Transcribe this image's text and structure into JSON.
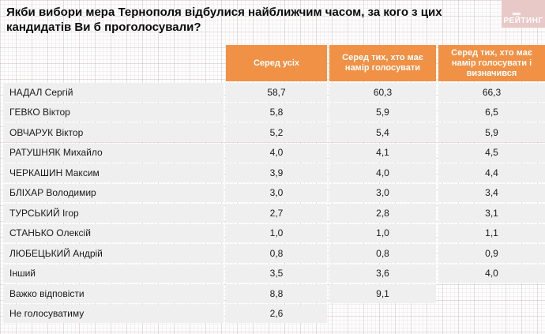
{
  "title": "Якби вибори мера Тернополя відбулися найближчим часом, за кого з цих кандидатів Ви б проголосували?",
  "logo": {
    "text": "РЕЙТИНГ"
  },
  "colors": {
    "header_orange": "#f09146",
    "cell_gray": "#efefef",
    "logo_pink": "#e9c9c7"
  },
  "table": {
    "columns": [
      "Серед усіх",
      "Серед тих, хто має намір голосувати",
      "Серед тих, хто має намір голосувати і визначився"
    ],
    "rows": [
      {
        "label": "НАДАЛ Сергій",
        "values": [
          "58,7",
          "60,3",
          "66,3"
        ]
      },
      {
        "label": "ГЕВКО Віктор",
        "values": [
          "5,8",
          "5,9",
          "6,5"
        ]
      },
      {
        "label": "ОВЧАРУК Віктор",
        "values": [
          "5,2",
          "5,4",
          "5,9"
        ]
      },
      {
        "label": "РАТУШНЯК Михайло",
        "values": [
          "4,0",
          "4,1",
          "4,5"
        ]
      },
      {
        "label": "ЧЕРКАШИН Максим",
        "values": [
          "3,9",
          "4,0",
          "4,4"
        ]
      },
      {
        "label": "БЛІХАР Володимир",
        "values": [
          "3,0",
          "3,0",
          "3,4"
        ]
      },
      {
        "label": "ТУРСЬКИЙ Ігор",
        "values": [
          "2,7",
          "2,8",
          "3,1"
        ]
      },
      {
        "label": "СТАНЬКО Олексій",
        "values": [
          "1,0",
          "1,0",
          "1,1"
        ]
      },
      {
        "label": "ЛЮБЕЦЬКИЙ Андрій",
        "values": [
          "0,8",
          "0,8",
          "0,9"
        ]
      },
      {
        "label": "Інший",
        "values": [
          "3,5",
          "3,6",
          "4,0"
        ]
      },
      {
        "label": "Важко відповісти",
        "values": [
          "8,8",
          "9,1",
          null
        ]
      },
      {
        "label": "Не голосуватиму",
        "values": [
          "2,6",
          null,
          null
        ]
      }
    ]
  },
  "chart_data": {
    "type": "table",
    "title": "Якби вибори мера Тернополя відбулися найближчим часом, за кого з цих кандидатів Ви б проголосували?",
    "categories": [
      "НАДАЛ Сергій",
      "ГЕВКО Віктор",
      "ОВЧАРУК Віктор",
      "РАТУШНЯК Михайло",
      "ЧЕРКАШИН Максим",
      "БЛІХАР Володимир",
      "ТУРСЬКИЙ Ігор",
      "СТАНЬКО Олексій",
      "ЛЮБЕЦЬКИЙ Андрій",
      "Інший",
      "Важко відповісти",
      "Не голосуватиму"
    ],
    "series": [
      {
        "name": "Серед усіх",
        "values": [
          58.7,
          5.8,
          5.2,
          4.0,
          3.9,
          3.0,
          2.7,
          1.0,
          0.8,
          3.5,
          8.8,
          2.6
        ]
      },
      {
        "name": "Серед тих, хто має намір голосувати",
        "values": [
          60.3,
          5.9,
          5.4,
          4.1,
          4.0,
          3.0,
          2.8,
          1.0,
          0.8,
          3.6,
          9.1,
          null
        ]
      },
      {
        "name": "Серед тих, хто має намір голосувати і визначився",
        "values": [
          66.3,
          6.5,
          5.9,
          4.5,
          4.4,
          3.4,
          3.1,
          1.1,
          0.9,
          4.0,
          null,
          null
        ]
      }
    ],
    "units": "percent",
    "legend_position": "top",
    "grid": false
  }
}
